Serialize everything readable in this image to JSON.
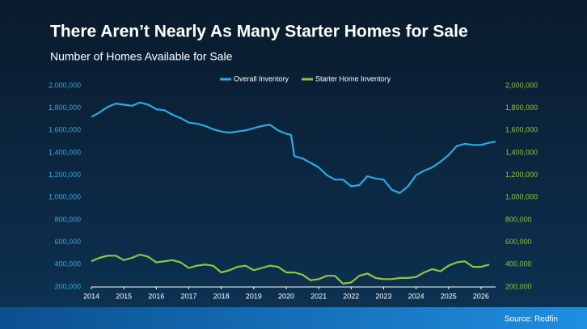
{
  "chart_data": {
    "type": "line",
    "title": "There Aren’t Nearly As Many Starter Homes for Sale",
    "subtitle": "Number of Homes Available for Sale",
    "source": "Source: Redfin",
    "x": [
      2014.0,
      2014.25,
      2014.5,
      2014.75,
      2015.0,
      2015.25,
      2015.5,
      2015.75,
      2016.0,
      2016.25,
      2016.5,
      2016.75,
      2017.0,
      2017.25,
      2017.5,
      2017.75,
      2018.0,
      2018.25,
      2018.5,
      2018.75,
      2019.0,
      2019.25,
      2019.5,
      2019.75,
      2020.0,
      2020.15,
      2020.25,
      2020.5,
      2020.75,
      2021.0,
      2021.25,
      2021.5,
      2021.75,
      2022.0,
      2022.25,
      2022.5,
      2022.75,
      2023.0,
      2023.25,
      2023.5,
      2023.75,
      2024.0,
      2024.25,
      2024.5,
      2024.75,
      2025.0,
      2025.25,
      2025.5,
      2025.75,
      2026.0,
      2026.25,
      2026.45
    ],
    "series": [
      {
        "name": "Overall Inventory",
        "color": "#29abe2",
        "axis": "y",
        "values": [
          1720000,
          1760000,
          1810000,
          1840000,
          1830000,
          1820000,
          1850000,
          1830000,
          1790000,
          1780000,
          1740000,
          1710000,
          1670000,
          1660000,
          1640000,
          1610000,
          1590000,
          1580000,
          1590000,
          1600000,
          1620000,
          1640000,
          1650000,
          1600000,
          1570000,
          1560000,
          1370000,
          1350000,
          1310000,
          1270000,
          1200000,
          1160000,
          1160000,
          1100000,
          1110000,
          1190000,
          1170000,
          1160000,
          1070000,
          1040000,
          1100000,
          1200000,
          1240000,
          1270000,
          1320000,
          1380000,
          1460000,
          1480000,
          1470000,
          1470000,
          1490000,
          1500000
        ]
      },
      {
        "name": "Starter Home Inventory",
        "color": "#8dc63f",
        "axis": "y2",
        "values": [
          430000,
          460000,
          480000,
          480000,
          440000,
          460000,
          490000,
          470000,
          420000,
          430000,
          440000,
          420000,
          370000,
          390000,
          400000,
          390000,
          330000,
          350000,
          380000,
          390000,
          350000,
          370000,
          390000,
          380000,
          330000,
          330000,
          330000,
          310000,
          260000,
          270000,
          300000,
          300000,
          230000,
          240000,
          300000,
          320000,
          280000,
          270000,
          270000,
          280000,
          280000,
          290000,
          330000,
          360000,
          340000,
          390000,
          420000,
          430000,
          380000,
          380000,
          400000,
          null
        ]
      }
    ],
    "xlim": [
      2014,
      2026.45
    ],
    "xticks": [
      2014,
      2015,
      2016,
      2017,
      2018,
      2019,
      2020,
      2021,
      2022,
      2023,
      2024,
      2025,
      2026
    ],
    "ylim": [
      200000,
      2000000
    ],
    "yticks": [
      {
        "value": 200000,
        "label": "200,000"
      },
      {
        "value": 400000,
        "label": "400,000"
      },
      {
        "value": 600000,
        "label": "600,000"
      },
      {
        "value": 800000,
        "label": "800,000"
      },
      {
        "value": 1000000,
        "label": "1,000,000"
      },
      {
        "value": 1200000,
        "label": "1,200,000"
      },
      {
        "value": 1400000,
        "label": "1,400,000"
      },
      {
        "value": 1600000,
        "label": "1,600,000"
      },
      {
        "value": 1800000,
        "label": "1,800,000"
      },
      {
        "value": 2000000,
        "label": "2,000,000"
      }
    ],
    "y2lim": [
      200000,
      2000000
    ],
    "y2ticks": [
      {
        "value": 200000,
        "label": "200,000"
      },
      {
        "value": 400000,
        "label": "400,000"
      },
      {
        "value": 600000,
        "label": "600,000"
      },
      {
        "value": 800000,
        "label": "800,000"
      },
      {
        "value": 1000000,
        "label": "1,000,000"
      },
      {
        "value": 1200000,
        "label": "1,200,000"
      },
      {
        "value": 1400000,
        "label": "1,400,000"
      },
      {
        "value": 1600000,
        "label": "1,600,000"
      },
      {
        "value": 1800000,
        "label": "1,800,000"
      },
      {
        "value": 2000000,
        "label": "2,000,000"
      }
    ],
    "legend": "top",
    "grid": false
  }
}
